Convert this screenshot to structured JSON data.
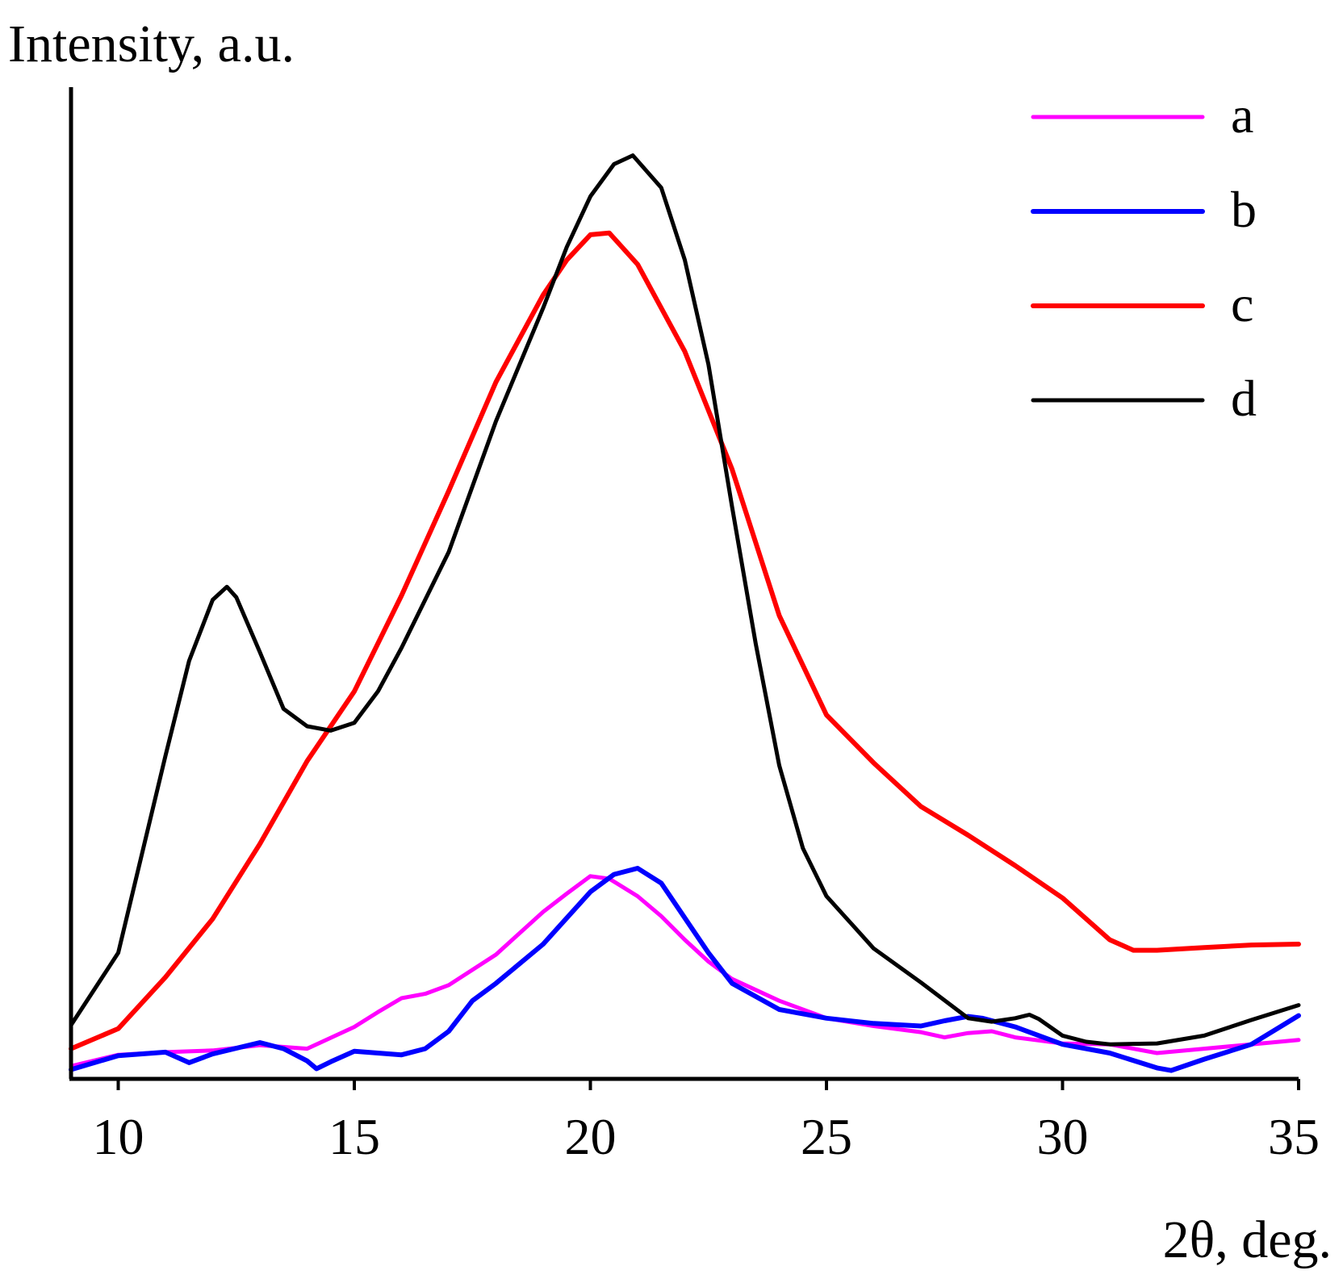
{
  "chart_data": {
    "type": "line",
    "title": "",
    "xlabel": "2θ, deg.",
    "ylabel": "Intensity, a.u.",
    "xlim": [
      9,
      35
    ],
    "ylim": [
      0,
      100
    ],
    "x_ticks": [
      10,
      15,
      20,
      25,
      30,
      35
    ],
    "x_tick_labels": [
      "10",
      "15",
      "20",
      "25",
      "30",
      "35"
    ],
    "y_ticks_shown": false,
    "grid": false,
    "legend_position": "top-right",
    "series": [
      {
        "name": "a",
        "color": "#ff00ff",
        "x": [
          9,
          10,
          11,
          12,
          13,
          14,
          15,
          15.5,
          16,
          16.5,
          17,
          18,
          19,
          19.5,
          20,
          20.4,
          21,
          21.5,
          22,
          22.5,
          23,
          24,
          25,
          26,
          27,
          27.5,
          28,
          28.5,
          29,
          30,
          31,
          32,
          33,
          34,
          35
        ],
        "y": [
          1.0,
          2.3,
          2.6,
          2.8,
          3.4,
          3.0,
          5.5,
          7.2,
          8.8,
          9.3,
          10.3,
          13.8,
          18.7,
          20.8,
          22.8,
          22.5,
          20.5,
          18.2,
          15.5,
          13.0,
          11.0,
          8.5,
          6.5,
          5.6,
          4.9,
          4.3,
          4.8,
          5.0,
          4.3,
          3.6,
          3.5,
          2.5,
          3.0,
          3.5,
          4.0
        ]
      },
      {
        "name": "b",
        "color": "#0000ff",
        "x": [
          9,
          10,
          11,
          11.5,
          12,
          13,
          13.5,
          14,
          14.2,
          14.5,
          15,
          16,
          16.5,
          17,
          17.5,
          18,
          19,
          20,
          20.5,
          21,
          21.5,
          22,
          22.5,
          23,
          24,
          25,
          26,
          27,
          27.5,
          28,
          28.3,
          29,
          30,
          31,
          32,
          32.3,
          33,
          34,
          35
        ],
        "y": [
          0.6,
          2.2,
          2.6,
          1.4,
          2.4,
          3.7,
          3.0,
          1.6,
          0.7,
          1.5,
          2.7,
          2.3,
          3.0,
          5.0,
          8.5,
          10.5,
          15.0,
          21.0,
          23.0,
          23.7,
          22.0,
          18.0,
          14.0,
          10.5,
          7.5,
          6.5,
          5.9,
          5.6,
          6.2,
          6.7,
          6.5,
          5.5,
          3.5,
          2.5,
          0.8,
          0.5,
          1.8,
          3.5,
          6.8
        ]
      },
      {
        "name": "c",
        "color": "#ff0000",
        "x": [
          9,
          10,
          11,
          12,
          13,
          14,
          15,
          16,
          17,
          18,
          19,
          19.5,
          20,
          20.4,
          21,
          22,
          23,
          24,
          25,
          26,
          27,
          28,
          29,
          30,
          31,
          31.5,
          32,
          33,
          34,
          35
        ],
        "y": [
          3.0,
          5.3,
          11.2,
          17.9,
          26.5,
          36.0,
          44.0,
          55.0,
          67.0,
          79.5,
          89.5,
          93.5,
          96.4,
          96.6,
          93.0,
          83.0,
          69.5,
          52.7,
          41.3,
          35.8,
          30.8,
          27.5,
          24.0,
          20.3,
          15.5,
          14.3,
          14.3,
          14.6,
          14.9,
          15.0
        ]
      },
      {
        "name": "d",
        "color": "#000000",
        "x": [
          9,
          10,
          11,
          11.5,
          12,
          12.3,
          12.5,
          13,
          13.5,
          14,
          14.5,
          15,
          15.5,
          16,
          17,
          18,
          19,
          19.5,
          20,
          20.5,
          20.9,
          21.5,
          22,
          22.5,
          23,
          23.5,
          24,
          24.5,
          25,
          25.5,
          26,
          27,
          28,
          28.5,
          29,
          29.3,
          29.5,
          30,
          30.5,
          31,
          32,
          33,
          34,
          35
        ],
        "y": [
          5.7,
          14.0,
          36.6,
          47.5,
          54.5,
          56.0,
          54.8,
          48.5,
          42.0,
          40.0,
          39.5,
          40.4,
          44.0,
          49.0,
          60.0,
          75.0,
          88.0,
          95.0,
          100.8,
          104.5,
          105.5,
          101.8,
          93.5,
          81.5,
          65.2,
          49.5,
          35.5,
          26.0,
          20.5,
          17.5,
          14.5,
          10.6,
          6.5,
          6.1,
          6.5,
          6.9,
          6.4,
          4.5,
          3.8,
          3.5,
          3.6,
          4.5,
          6.3,
          8.0
        ]
      }
    ]
  }
}
